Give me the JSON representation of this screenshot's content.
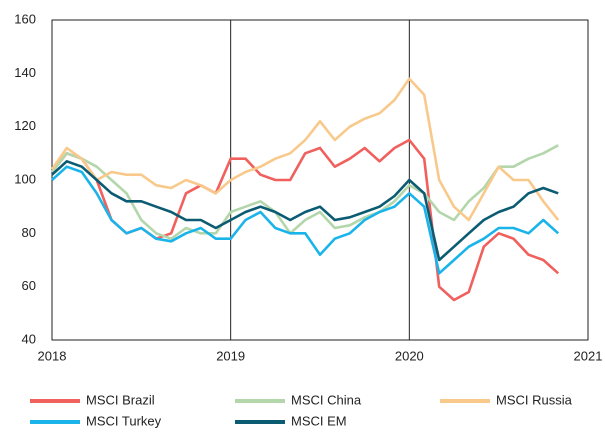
{
  "chart_data": {
    "type": "line",
    "x": [
      2018,
      2018.083,
      2018.167,
      2018.25,
      2018.333,
      2018.417,
      2018.5,
      2018.583,
      2018.667,
      2018.75,
      2018.833,
      2018.917,
      2019,
      2019.083,
      2019.167,
      2019.25,
      2019.333,
      2019.417,
      2019.5,
      2019.583,
      2019.667,
      2019.75,
      2019.833,
      2019.917,
      2020,
      2020.083,
      2020.167,
      2020.25,
      2020.333,
      2020.417,
      2020.5,
      2020.583,
      2020.667,
      2020.75,
      2020.833
    ],
    "series": [
      {
        "name": "MSCI Brazil",
        "color": "#f0605d",
        "values": [
          103,
          110,
          108,
          100,
          85,
          80,
          82,
          78,
          80,
          95,
          98,
          95,
          108,
          108,
          102,
          100,
          100,
          110,
          112,
          105,
          108,
          112,
          107,
          112,
          115,
          108,
          60,
          55,
          58,
          75,
          80,
          78,
          72,
          70,
          65
        ]
      },
      {
        "name": "MSCI China",
        "color": "#b3d6ab",
        "values": [
          103,
          110,
          108,
          105,
          100,
          95,
          85,
          80,
          78,
          82,
          80,
          80,
          88,
          90,
          92,
          88,
          80,
          85,
          88,
          82,
          83,
          86,
          88,
          92,
          98,
          95,
          88,
          85,
          92,
          97,
          105,
          105,
          108,
          110,
          113
        ]
      },
      {
        "name": "MSCI Russia",
        "color": "#f9c98c",
        "values": [
          104,
          112,
          108,
          100,
          103,
          102,
          102,
          98,
          97,
          100,
          98,
          95,
          100,
          103,
          105,
          108,
          110,
          115,
          122,
          115,
          120,
          123,
          125,
          130,
          138,
          132,
          100,
          90,
          85,
          95,
          105,
          100,
          100,
          92,
          85
        ]
      },
      {
        "name": "MSCI Turkey",
        "color": "#1ab4ea",
        "values": [
          100,
          105,
          103,
          95,
          85,
          80,
          82,
          78,
          77,
          80,
          82,
          78,
          78,
          85,
          88,
          82,
          80,
          80,
          72,
          78,
          80,
          85,
          88,
          90,
          95,
          90,
          65,
          70,
          75,
          78,
          82,
          82,
          80,
          85,
          80
        ]
      },
      {
        "name": "MSCI EM",
        "color": "#0b5c73",
        "values": [
          102,
          107,
          105,
          100,
          95,
          92,
          92,
          90,
          88,
          85,
          85,
          82,
          85,
          88,
          90,
          88,
          85,
          88,
          90,
          85,
          86,
          88,
          90,
          94,
          100,
          95,
          70,
          75,
          80,
          85,
          88,
          90,
          95,
          97,
          95
        ]
      }
    ],
    "xlim": [
      2018,
      2021
    ],
    "xticks": [
      2018,
      2019,
      2020,
      2021
    ],
    "ylim": [
      40,
      160
    ],
    "yticks": [
      40,
      60,
      80,
      100,
      120,
      140,
      160
    ],
    "grid": true
  }
}
